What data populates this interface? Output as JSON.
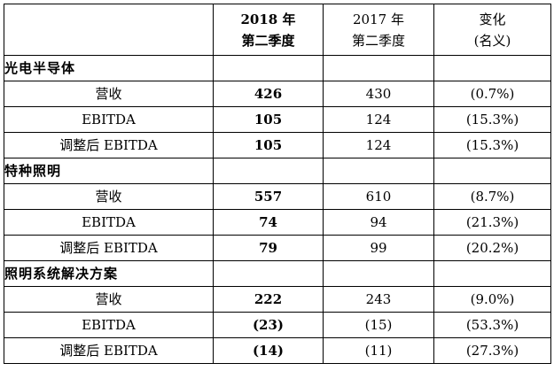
{
  "header": {
    "col_2018_year": "2018 年",
    "col_2018_quarter": "第二季度",
    "col_2017_year": "2017 年",
    "col_2017_quarter": "第二季度",
    "col_change": "变化",
    "col_change_sub": "(名义)"
  },
  "sections": [
    {
      "title": "光电半导体",
      "rows": [
        {
          "label": "营收",
          "v2018": "426",
          "v2017": "430",
          "change": "(0.7%)"
        },
        {
          "label": "EBITDA",
          "v2018": "105",
          "v2017": "124",
          "change": "(15.3%)"
        },
        {
          "label": "调整后 EBITDA",
          "v2018": "105",
          "v2017": "124",
          "change": "(15.3%)"
        }
      ]
    },
    {
      "title": "特种照明",
      "rows": [
        {
          "label": "营收",
          "v2018": "557",
          "v2017": "610",
          "change": "(8.7%)"
        },
        {
          "label": "EBITDA",
          "v2018": "74",
          "v2017": "94",
          "change": "(21.3%)"
        },
        {
          "label": "调整后 EBITDA",
          "v2018": "79",
          "v2017": "99",
          "change": "(20.2%)"
        }
      ]
    },
    {
      "title": "照明系统解决方案",
      "rows": [
        {
          "label": "营收",
          "v2018": "222",
          "v2017": "243",
          "change": "(9.0%)"
        },
        {
          "label": "EBITDA",
          "v2018": "(23)",
          "v2017": "(15)",
          "change": "(53.3%)"
        },
        {
          "label": "调整后 EBITDA",
          "v2018": "(14)",
          "v2017": "(11)",
          "change": "(27.3%)"
        }
      ]
    }
  ]
}
